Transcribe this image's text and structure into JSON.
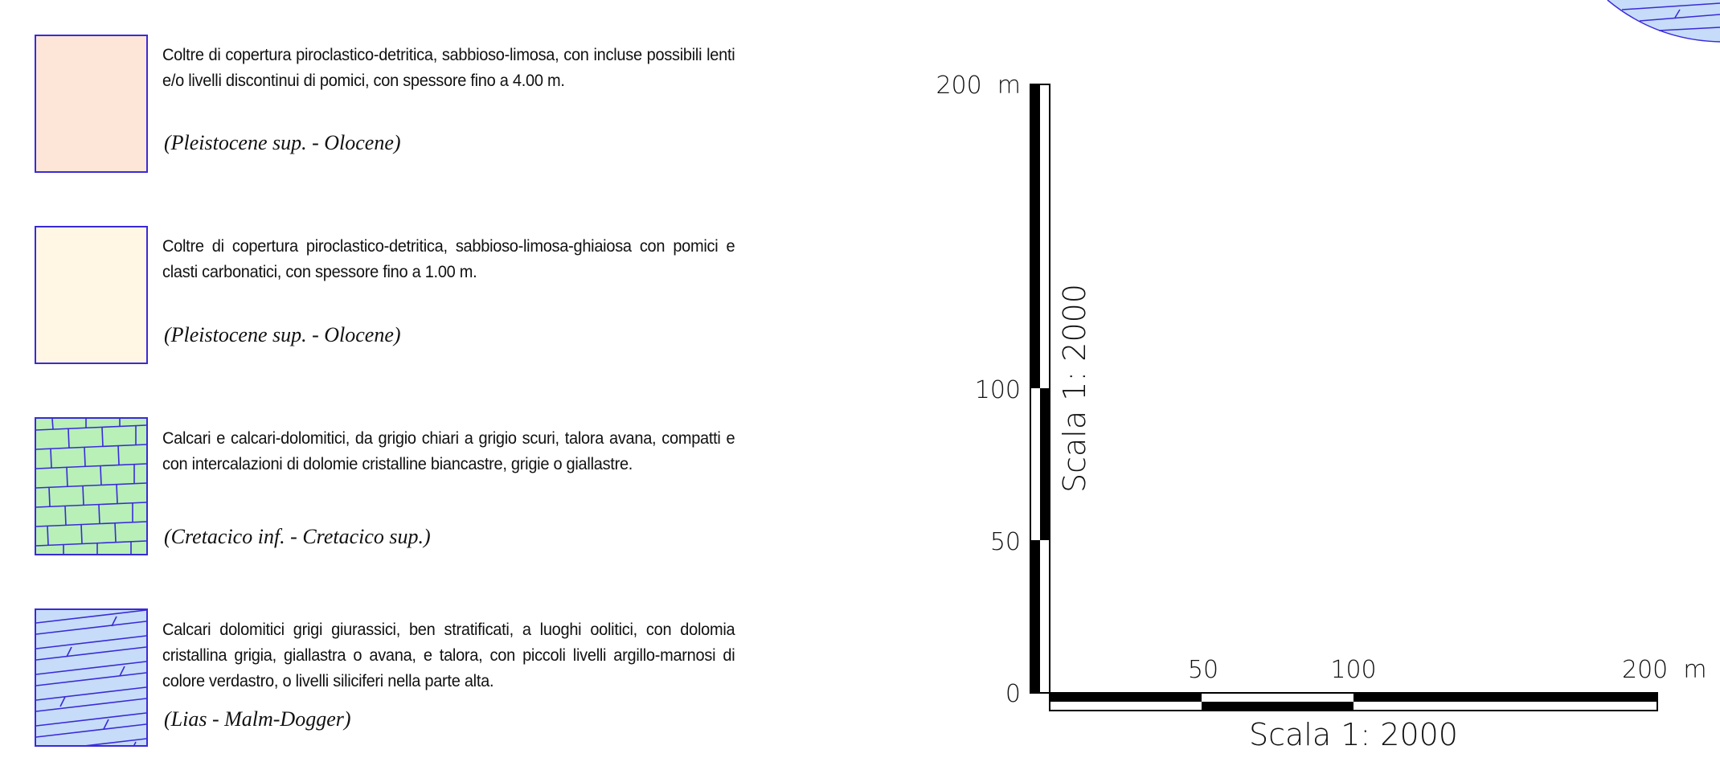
{
  "legend": [
    {
      "description": "Coltre di copertura piroclastico-detritica, sabbioso-limosa, con incluse possibili lenti e/o livelli discontinui di pomici, con spessore fino a 4.00 m.",
      "age": "(Pleistocene sup. - Olocene)",
      "fill": "#fde6d8",
      "pattern": "plain"
    },
    {
      "description": "Coltre di copertura piroclastico-detritica, sabbioso-limosa-ghiaiosa con pomici e clasti carbonatici, con spessore fino a 1.00 m.",
      "age": "(Pleistocene sup. - Olocene)",
      "fill": "#fff7e3",
      "pattern": "plain"
    },
    {
      "description": "Calcari e calcari-dolomitici, da grigio chiari a grigio scuri, talora avana, compatti e con intercalazioni di dolomie cristalline biancastre, grigie o giallastre.",
      "age": "(Cretacico inf. - Cretacico sup.)",
      "fill": "#b8f0b8",
      "pattern": "limestone"
    },
    {
      "description": "Calcari dolomitici grigi giurassici, ben stratificati, a luoghi oolitici, con dolomia cristallina grigia, giallastra o avana, e talora, con piccoli livelli argillo-marnosi di colore verdastro, o livelli siliciferi nella parte alta.",
      "age": "(Lias - Malm-Dogger)",
      "fill": "#c6dcf8",
      "pattern": "dolomite"
    }
  ],
  "scale_bars": {
    "vertical": {
      "caption": "Scala 1: 2000",
      "tick_labels": [
        {
          "value": 200,
          "text": "200  m"
        },
        {
          "value": 100,
          "text": "100"
        },
        {
          "value": 50,
          "text": "50"
        },
        {
          "value": 0,
          "text": "0"
        }
      ]
    },
    "horizontal": {
      "caption": "Scala 1: 2000",
      "tick_labels": [
        {
          "value": 50,
          "text": "50"
        },
        {
          "value": 100,
          "text": "100"
        },
        {
          "value": 200,
          "text": "200  m"
        }
      ]
    }
  },
  "colors": {
    "outline": "#3a2ad8",
    "bar": "#000000"
  }
}
